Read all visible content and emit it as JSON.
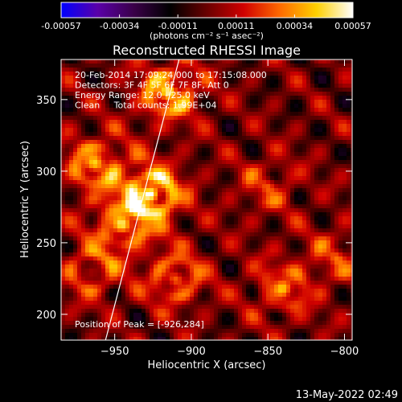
{
  "chart_data": {
    "type": "heatmap",
    "title": "Reconstructed RHESSI Image",
    "colorbar": {
      "tick_labels": [
        "-0.00057",
        "-0.00034",
        "-0.00011",
        "0.00011",
        "0.00034",
        "0.00057"
      ],
      "range": [
        -0.00057,
        0.00057
      ],
      "unit_label": "(photons cm⁻² s⁻¹ asec⁻²)",
      "colormap": [
        "#0000ff",
        "#5a00a8",
        "#3a0048",
        "#000000",
        "#6a0000",
        "#d00000",
        "#ff6a00",
        "#ffd000",
        "#ffffff"
      ]
    },
    "xlabel": "Heliocentric X (arcsec)",
    "ylabel": "Heliocentric Y (arcsec)",
    "xlim": [
      -985,
      -795
    ],
    "ylim": [
      182,
      378
    ],
    "xticks": [
      -950,
      -900,
      -850,
      -800
    ],
    "yticks": [
      200,
      250,
      300,
      350
    ],
    "annotations": [
      "20-Feb-2014 17:09:24.000 to 17:15:08.000",
      "Detectors: 3F 4F 5F 6F 7F 8F, Att 0",
      "Energy Range: 12.0 - 25.0 keV",
      "Clean     Total counts: 1.99E+04"
    ],
    "peak_label": "Position of Peak = [-926,284]",
    "peak": {
      "x": -926,
      "y": 284
    },
    "limb_line": [
      {
        "x": -956,
        "y": 182
      },
      {
        "x": -908,
        "y": 378
      }
    ],
    "hotspots": [
      {
        "x": -926,
        "y": 284,
        "intensity": 1.0
      },
      {
        "x": -915,
        "y": 355,
        "intensity": 0.8
      },
      {
        "x": -963,
        "y": 305,
        "intensity": 0.65
      },
      {
        "x": -945,
        "y": 262,
        "intensity": 0.6
      },
      {
        "x": -910,
        "y": 225,
        "intensity": 0.55
      },
      {
        "x": -965,
        "y": 230,
        "intensity": 0.45
      },
      {
        "x": -840,
        "y": 218,
        "intensity": 0.5
      },
      {
        "x": -850,
        "y": 290,
        "intensity": 0.35
      },
      {
        "x": -805,
        "y": 240,
        "intensity": 0.35
      }
    ]
  },
  "footer": {
    "timestamp": "13-May-2022 02:49"
  }
}
